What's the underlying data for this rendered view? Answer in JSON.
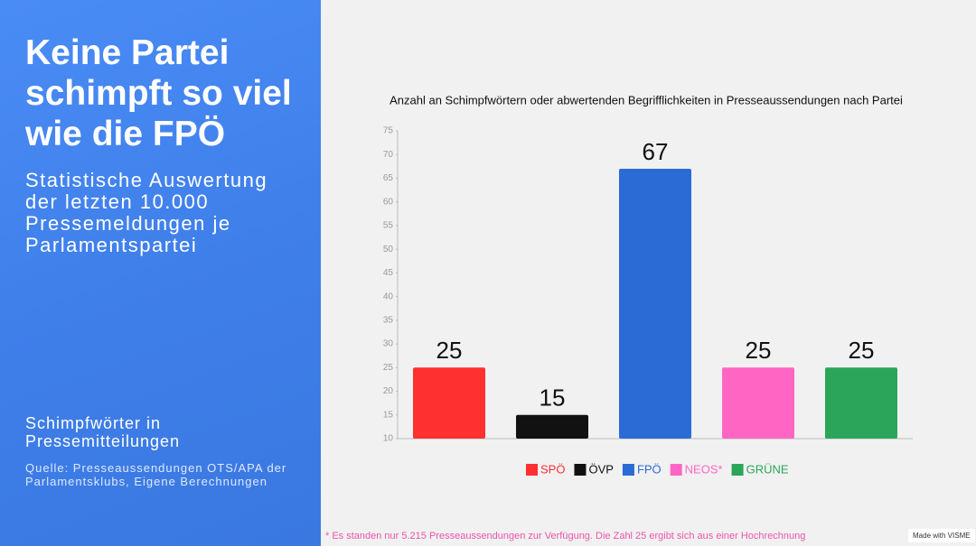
{
  "sidebar": {
    "title": "Keine Partei schimpft so viel wie die FPÖ",
    "subtitle": "Statistische Auswertung der letzten 10.000 Pressemeldungen je Parlamentspartei",
    "section": "Schimpfwörter in Pressemitteilungen",
    "source": "Quelle: Presseaussendungen OTS/APA der Parlamentsklubs, Eigene Berechnungen"
  },
  "chart_data": {
    "type": "bar",
    "title": "Anzahl an Schimpfwörtern oder abwertenden Begrifflichkeiten in Presseaussendungen nach Partei",
    "categories": [
      "SPÖ",
      "ÖVP",
      "FPÖ",
      "NEOS*",
      "GRÜNE"
    ],
    "values": [
      25,
      15,
      67,
      25,
      25
    ],
    "colors": [
      "#ff3030",
      "#111111",
      "#2a6bd6",
      "#ff66c4",
      "#2ba55a"
    ],
    "ylim": [
      10,
      75
    ],
    "yticks": [
      10,
      15,
      20,
      25,
      30,
      35,
      40,
      45,
      50,
      55,
      60,
      65,
      70,
      75
    ]
  },
  "footnote": "* Es standen nur 5.215 Presseaussendungen zur Verfügung. Die Zahl 25 ergibt sich aus einer Hochrechnung",
  "badge": "Made with VISME"
}
